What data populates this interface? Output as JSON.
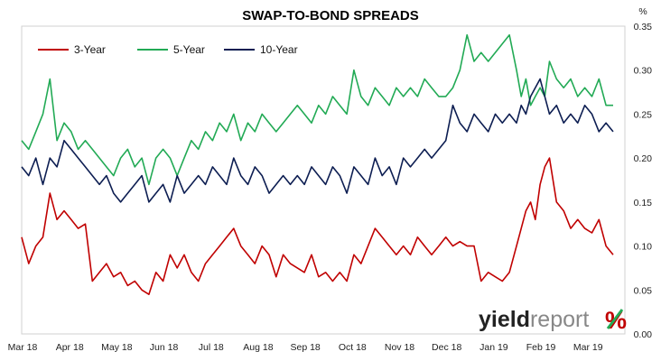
{
  "chart_data": {
    "type": "line",
    "title": "SWAP-TO-BOND SPREADS",
    "ylabel": "%",
    "ylim": [
      0,
      0.35
    ],
    "yticks": [
      "0.00",
      "0.05",
      "0.10",
      "0.15",
      "0.20",
      "0.25",
      "0.30",
      "0.35"
    ],
    "xlim": [
      0,
      12.8
    ],
    "xticks": [
      "Mar 18",
      "Apr 18",
      "May 18",
      "Jun 18",
      "Jul 18",
      "Aug 18",
      "Sep 18",
      "Oct 18",
      "Nov 18",
      "Dec 18",
      "Jan 19",
      "Feb 19",
      "Mar 19"
    ],
    "grid": false,
    "legend_position": "top-left",
    "colors": {
      "3-Year": "#c00000",
      "5-Year": "#22aa55",
      "10-Year": "#0d1e52"
    },
    "series": [
      {
        "name": "3-Year",
        "x": [
          0,
          0.15,
          0.3,
          0.45,
          0.6,
          0.75,
          0.9,
          1.05,
          1.2,
          1.35,
          1.5,
          1.65,
          1.8,
          1.95,
          2.1,
          2.25,
          2.4,
          2.55,
          2.7,
          2.85,
          3.0,
          3.15,
          3.3,
          3.45,
          3.6,
          3.75,
          3.9,
          4.05,
          4.2,
          4.35,
          4.5,
          4.65,
          4.8,
          4.95,
          5.1,
          5.25,
          5.4,
          5.55,
          5.7,
          5.85,
          6.0,
          6.15,
          6.3,
          6.45,
          6.6,
          6.75,
          6.9,
          7.05,
          7.2,
          7.35,
          7.5,
          7.65,
          7.8,
          7.95,
          8.1,
          8.25,
          8.4,
          8.55,
          8.7,
          8.85,
          9.0,
          9.15,
          9.3,
          9.45,
          9.6,
          9.75,
          9.9,
          10.05,
          10.2,
          10.35,
          10.5,
          10.6,
          10.7,
          10.8,
          10.9,
          11.0,
          11.1,
          11.2,
          11.35,
          11.5,
          11.65,
          11.8,
          11.95,
          12.1,
          12.25,
          12.4,
          12.55
        ],
        "values": [
          0.11,
          0.08,
          0.1,
          0.11,
          0.16,
          0.13,
          0.14,
          0.13,
          0.12,
          0.125,
          0.06,
          0.07,
          0.08,
          0.065,
          0.07,
          0.055,
          0.06,
          0.05,
          0.045,
          0.07,
          0.06,
          0.09,
          0.075,
          0.09,
          0.07,
          0.06,
          0.08,
          0.09,
          0.1,
          0.11,
          0.12,
          0.1,
          0.09,
          0.08,
          0.1,
          0.09,
          0.065,
          0.09,
          0.08,
          0.075,
          0.07,
          0.09,
          0.065,
          0.07,
          0.06,
          0.07,
          0.06,
          0.09,
          0.08,
          0.1,
          0.12,
          0.11,
          0.1,
          0.09,
          0.1,
          0.09,
          0.11,
          0.1,
          0.09,
          0.1,
          0.11,
          0.1,
          0.105,
          0.1,
          0.1,
          0.06,
          0.07,
          0.065,
          0.06,
          0.07,
          0.1,
          0.12,
          0.14,
          0.15,
          0.13,
          0.17,
          0.19,
          0.2,
          0.15,
          0.14,
          0.12,
          0.13,
          0.12,
          0.115,
          0.13,
          0.1,
          0.09
        ]
      },
      {
        "name": "5-Year",
        "x": [
          0,
          0.15,
          0.3,
          0.45,
          0.6,
          0.75,
          0.9,
          1.05,
          1.2,
          1.35,
          1.5,
          1.65,
          1.8,
          1.95,
          2.1,
          2.25,
          2.4,
          2.55,
          2.7,
          2.85,
          3.0,
          3.15,
          3.3,
          3.45,
          3.6,
          3.75,
          3.9,
          4.05,
          4.2,
          4.35,
          4.5,
          4.65,
          4.8,
          4.95,
          5.1,
          5.25,
          5.4,
          5.55,
          5.7,
          5.85,
          6.0,
          6.15,
          6.3,
          6.45,
          6.6,
          6.75,
          6.9,
          7.05,
          7.2,
          7.35,
          7.5,
          7.65,
          7.8,
          7.95,
          8.1,
          8.25,
          8.4,
          8.55,
          8.7,
          8.85,
          9.0,
          9.15,
          9.3,
          9.45,
          9.6,
          9.75,
          9.9,
          10.05,
          10.2,
          10.35,
          10.5,
          10.6,
          10.7,
          10.8,
          10.9,
          11.0,
          11.1,
          11.2,
          11.35,
          11.5,
          11.65,
          11.8,
          11.95,
          12.1,
          12.25,
          12.4,
          12.55
        ],
        "values": [
          0.22,
          0.21,
          0.23,
          0.25,
          0.29,
          0.22,
          0.24,
          0.23,
          0.21,
          0.22,
          0.21,
          0.2,
          0.19,
          0.18,
          0.2,
          0.21,
          0.19,
          0.2,
          0.17,
          0.2,
          0.21,
          0.2,
          0.18,
          0.2,
          0.22,
          0.21,
          0.23,
          0.22,
          0.24,
          0.23,
          0.25,
          0.22,
          0.24,
          0.23,
          0.25,
          0.24,
          0.23,
          0.24,
          0.25,
          0.26,
          0.25,
          0.24,
          0.26,
          0.25,
          0.27,
          0.26,
          0.25,
          0.3,
          0.27,
          0.26,
          0.28,
          0.27,
          0.26,
          0.28,
          0.27,
          0.28,
          0.27,
          0.29,
          0.28,
          0.27,
          0.27,
          0.28,
          0.3,
          0.34,
          0.31,
          0.32,
          0.31,
          0.32,
          0.33,
          0.34,
          0.3,
          0.27,
          0.29,
          0.26,
          0.27,
          0.28,
          0.27,
          0.31,
          0.29,
          0.28,
          0.29,
          0.27,
          0.28,
          0.27,
          0.29,
          0.26,
          0.26
        ]
      },
      {
        "name": "10-Year",
        "x": [
          0,
          0.15,
          0.3,
          0.45,
          0.6,
          0.75,
          0.9,
          1.05,
          1.2,
          1.35,
          1.5,
          1.65,
          1.8,
          1.95,
          2.1,
          2.25,
          2.4,
          2.55,
          2.7,
          2.85,
          3.0,
          3.15,
          3.3,
          3.45,
          3.6,
          3.75,
          3.9,
          4.05,
          4.2,
          4.35,
          4.5,
          4.65,
          4.8,
          4.95,
          5.1,
          5.25,
          5.4,
          5.55,
          5.7,
          5.85,
          6.0,
          6.15,
          6.3,
          6.45,
          6.6,
          6.75,
          6.9,
          7.05,
          7.2,
          7.35,
          7.5,
          7.65,
          7.8,
          7.95,
          8.1,
          8.25,
          8.4,
          8.55,
          8.7,
          8.85,
          9.0,
          9.15,
          9.3,
          9.45,
          9.6,
          9.75,
          9.9,
          10.05,
          10.2,
          10.35,
          10.5,
          10.6,
          10.7,
          10.8,
          10.9,
          11.0,
          11.1,
          11.2,
          11.35,
          11.5,
          11.65,
          11.8,
          11.95,
          12.1,
          12.25,
          12.4,
          12.55
        ],
        "values": [
          0.19,
          0.18,
          0.2,
          0.17,
          0.2,
          0.19,
          0.22,
          0.21,
          0.2,
          0.19,
          0.18,
          0.17,
          0.18,
          0.16,
          0.15,
          0.16,
          0.17,
          0.18,
          0.15,
          0.16,
          0.17,
          0.15,
          0.18,
          0.16,
          0.17,
          0.18,
          0.17,
          0.19,
          0.18,
          0.17,
          0.2,
          0.18,
          0.17,
          0.19,
          0.18,
          0.16,
          0.17,
          0.18,
          0.17,
          0.18,
          0.17,
          0.19,
          0.18,
          0.17,
          0.19,
          0.18,
          0.16,
          0.19,
          0.18,
          0.17,
          0.2,
          0.18,
          0.19,
          0.17,
          0.2,
          0.19,
          0.2,
          0.21,
          0.2,
          0.21,
          0.22,
          0.26,
          0.24,
          0.23,
          0.25,
          0.24,
          0.23,
          0.25,
          0.24,
          0.25,
          0.24,
          0.26,
          0.25,
          0.27,
          0.28,
          0.29,
          0.27,
          0.25,
          0.26,
          0.24,
          0.25,
          0.24,
          0.26,
          0.25,
          0.23,
          0.24,
          0.23
        ]
      }
    ]
  },
  "branding": {
    "part1": "yield",
    "part2": "report",
    "pct": "%"
  }
}
